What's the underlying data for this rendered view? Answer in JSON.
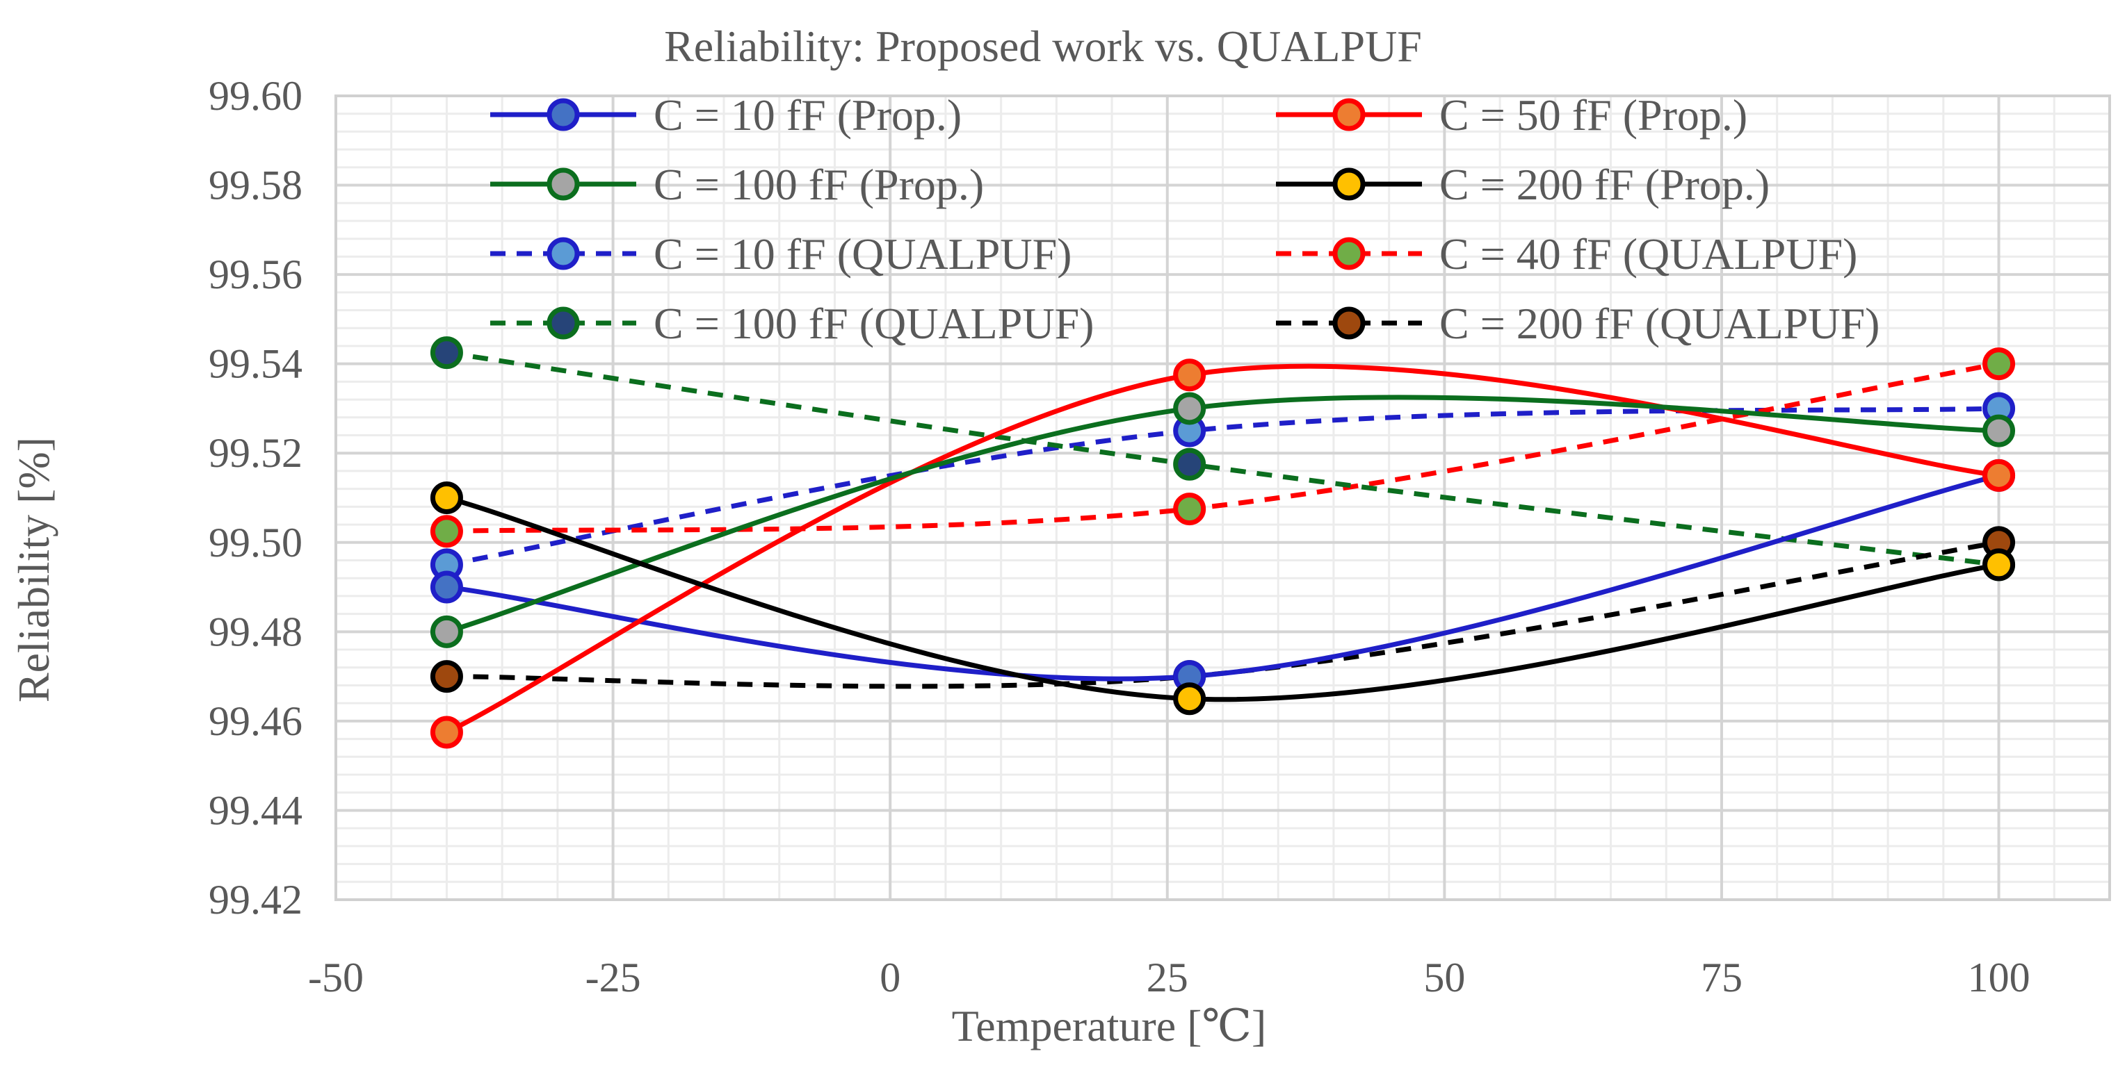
{
  "chart_data": {
    "type": "line",
    "title": "Reliability: Proposed work  vs.  QUALPUF",
    "xlabel": "Temperature [℃]",
    "ylabel": "Reliability [%]",
    "xlim": [
      -50,
      110
    ],
    "ylim": [
      99.42,
      99.6
    ],
    "x_major_step": 25,
    "x_ticks": [
      -50,
      -25,
      0,
      25,
      50,
      75,
      100
    ],
    "x_tick_labels": [
      "-50",
      "-25",
      "0",
      "25",
      "50",
      "75",
      "100"
    ],
    "y_ticks": [
      99.42,
      99.44,
      99.46,
      99.48,
      99.5,
      99.52,
      99.54,
      99.56,
      99.58,
      99.6
    ],
    "y_tick_labels": [
      "99.42",
      "99.44",
      "99.46",
      "99.48",
      "99.50",
      "99.52",
      "99.54",
      "99.56",
      "99.58",
      "99.60"
    ],
    "grid": true,
    "legend_position": "top",
    "series": [
      {
        "name": "C = 10 fF (Prop.)",
        "x": [
          -40,
          27,
          100
        ],
        "y": [
          99.49,
          99.47,
          99.515
        ],
        "line_color": "#1f1fc8",
        "marker_color": "#4472c4",
        "dashed": false
      },
      {
        "name": "C = 50 fF (Prop.)",
        "x": [
          -40,
          27,
          100
        ],
        "y": [
          99.4575,
          99.5375,
          99.515
        ],
        "line_color": "#ff0000",
        "marker_color": "#ed7d31",
        "dashed": false
      },
      {
        "name": "C = 100 fF (Prop.)",
        "x": [
          -40,
          27,
          100
        ],
        "y": [
          99.48,
          99.53,
          99.525
        ],
        "line_color": "#0b6e1e",
        "marker_color": "#a5a5a5",
        "dashed": false
      },
      {
        "name": "C = 200 fF (Prop.)",
        "x": [
          -40,
          27,
          100
        ],
        "y": [
          99.51,
          99.465,
          99.495
        ],
        "line_color": "#000000",
        "marker_color": "#ffc000",
        "dashed": false
      },
      {
        "name": "C = 10 fF (QUALPUF)",
        "x": [
          -40,
          27,
          100
        ],
        "y": [
          99.495,
          99.525,
          99.53
        ],
        "line_color": "#1f1fc8",
        "marker_color": "#5b9bd5",
        "dashed": true
      },
      {
        "name": "C = 40 fF (QUALPUF)",
        "x": [
          -40,
          27,
          100
        ],
        "y": [
          99.5025,
          99.5075,
          99.54
        ],
        "line_color": "#ff0000",
        "marker_color": "#70ad47",
        "dashed": true
      },
      {
        "name": "C = 100 fF (QUALPUF)",
        "x": [
          -40,
          27,
          100
        ],
        "y": [
          99.5425,
          99.5175,
          99.495
        ],
        "line_color": "#0b6e1e",
        "marker_color": "#264478",
        "dashed": true
      },
      {
        "name": "C = 200 fF (QUALPUF)",
        "x": [
          -40,
          27,
          100
        ],
        "y": [
          99.47,
          99.47,
          99.5
        ],
        "line_color": "#000000",
        "marker_color": "#9e480e",
        "dashed": true
      }
    ]
  }
}
